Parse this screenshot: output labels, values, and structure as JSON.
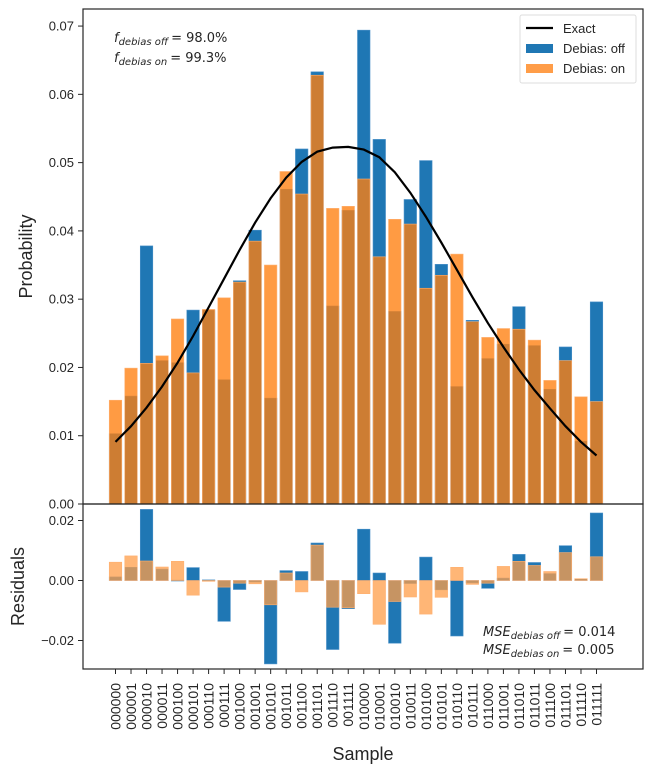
{
  "chart_data": [
    {
      "panel": "main",
      "type": "bar",
      "xlabel": "",
      "ylabel": "Probability",
      "ylim": [
        0.0,
        0.0725
      ],
      "yticks": [
        "0.00",
        "0.01",
        "0.02",
        "0.03",
        "0.04",
        "0.05",
        "0.06",
        "0.07"
      ],
      "ytick_values": [
        0.0,
        0.01,
        0.02,
        0.03,
        0.04,
        0.05,
        0.06,
        0.07
      ],
      "categories": [
        "000000",
        "000001",
        "000010",
        "000011",
        "000100",
        "000101",
        "000110",
        "000111",
        "001000",
        "001001",
        "001010",
        "001011",
        "001100",
        "001101",
        "001110",
        "001111",
        "010000",
        "010001",
        "010010",
        "010011",
        "010100",
        "010101",
        "010110",
        "010111",
        "011000",
        "011001",
        "011010",
        "011011",
        "011100",
        "011101",
        "011110",
        "011111"
      ],
      "series": [
        {
          "name": "Debias: off",
          "type": "bar",
          "color": "#1f77b4",
          "values": [
            0.0103,
            0.0158,
            0.0378,
            0.021,
            0.0207,
            0.0284,
            0.0284,
            0.0182,
            0.0327,
            0.0401,
            0.0155,
            0.0461,
            0.052,
            0.0633,
            0.029,
            0.043,
            0.0694,
            0.0534,
            0.0282,
            0.0446,
            0.0503,
            0.0351,
            0.0172,
            0.0269,
            0.0213,
            0.0234,
            0.0289,
            0.0232,
            0.0168,
            0.023,
            0.0092,
            0.0296
          ]
        },
        {
          "name": "Debias: on",
          "type": "bar",
          "color": "#ff7f0e",
          "values": [
            0.0152,
            0.0199,
            0.0206,
            0.0217,
            0.0271,
            0.0192,
            0.0285,
            0.0302,
            0.0325,
            0.0385,
            0.035,
            0.0487,
            0.0454,
            0.0628,
            0.0433,
            0.0436,
            0.0476,
            0.0362,
            0.0417,
            0.041,
            0.0316,
            0.0335,
            0.0366,
            0.0267,
            0.0244,
            0.0257,
            0.0256,
            0.024,
            0.0181,
            0.021,
            0.0157,
            0.015
          ]
        },
        {
          "name": "Exact",
          "type": "line",
          "color": "#000000",
          "values": [
            0.0091,
            0.0114,
            0.0141,
            0.0172,
            0.0207,
            0.0246,
            0.0288,
            0.033,
            0.0372,
            0.0412,
            0.0448,
            0.0478,
            0.0501,
            0.0516,
            0.0522,
            0.0523,
            0.0519,
            0.0508,
            0.0486,
            0.0456,
            0.0421,
            0.0383,
            0.0343,
            0.0303,
            0.0265,
            0.023,
            0.0197,
            0.0167,
            0.014,
            0.0114,
            0.0091,
            0.0071
          ]
        }
      ],
      "legend": {
        "placement": "top-right",
        "entries": [
          "Exact",
          "Debias: off",
          "Debias: on"
        ]
      },
      "annotations": [
        {
          "base": "f",
          "sub": "debias off",
          "value": "= 98.0%"
        },
        {
          "base": "f",
          "sub": "debias on",
          "value": "= 99.3%"
        }
      ]
    },
    {
      "panel": "residuals",
      "type": "bar",
      "xlabel": "Sample",
      "ylabel": "Residuals",
      "ylim": [
        -0.0295,
        0.0255
      ],
      "yticks": [
        "−0.02",
        "0.00",
        "0.02"
      ],
      "ytick_values": [
        -0.02,
        0.0,
        0.02
      ],
      "categories_ref": "same as main panel",
      "series": [
        {
          "name": "Debias: off",
          "color": "#1f77b4",
          "values": [
            0.0012,
            0.0044,
            0.0237,
            0.0038,
            0.0001,
            0.0043,
            0.0002,
            -0.0136,
            -0.003,
            -0.0005,
            -0.0278,
            0.0033,
            0.003,
            0.0125,
            -0.023,
            -0.0094,
            0.0171,
            0.0025,
            -0.0209,
            -0.001,
            0.0078,
            -0.0031,
            -0.0185,
            -0.0008,
            -0.0026,
            0.0008,
            0.0087,
            0.006,
            0.0023,
            0.0116,
            0.0005,
            0.0225
          ]
        },
        {
          "name": "Debias: on",
          "color": "#ff7f0e",
          "values": [
            0.0061,
            0.0082,
            0.0065,
            0.0045,
            0.0064,
            -0.0049,
            -0.0002,
            -0.0022,
            -0.0009,
            -0.0011,
            -0.0081,
            0.0025,
            -0.0038,
            0.0118,
            -0.0089,
            -0.0091,
            -0.0044,
            -0.0146,
            -0.007,
            -0.0055,
            -0.0112,
            -0.0056,
            0.0044,
            -0.0013,
            -0.0009,
            0.0047,
            0.0064,
            0.005,
            0.003,
            0.0093,
            0.0006,
            0.0079
          ]
        }
      ],
      "annotations": [
        {
          "base": "MSE",
          "sub": "debias off",
          "value": "= 0.014"
        },
        {
          "base": "MSE",
          "sub": "debias on",
          "value": "= 0.005"
        }
      ]
    }
  ]
}
